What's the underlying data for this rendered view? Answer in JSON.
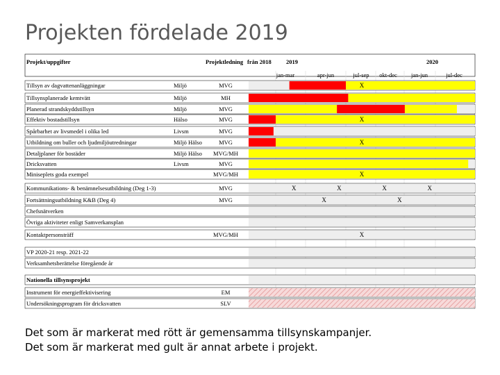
{
  "title": "Projekten fördelade 2019",
  "headers": {
    "task": "Projekt/uppgifter",
    "lead": "Projektledning",
    "from2018": "från 2018",
    "y2019": "2019",
    "y2020": "2020",
    "periods": [
      "jan-mar",
      "apr-jun",
      "jul-sep",
      "okt-dec",
      "jan-jun",
      "jul-dec"
    ]
  },
  "legend_red": "Det som är markerat med rött är gemensamma tillsynskampanjer.",
  "legend_yellow": "Det som är markerat med gult är annat arbete i projekt.",
  "colors": {
    "red": "#ff0000",
    "yellow": "#ffff00",
    "hatch": "#e8a4a4",
    "grid": "#d9d9d9"
  },
  "rows": [
    {
      "task": "Tillsyn av dagvattenanläggningar",
      "unit": "Miljö",
      "lead": "MVG",
      "marks": [
        "X"
      ],
      "bars": [
        [
          "red",
          18,
          43
        ],
        [
          "yellow",
          43,
          100
        ]
      ]
    },
    {
      "task": "Tillsynsplanerade kemtvätt",
      "unit": "Miljö",
      "lead": "MH",
      "marks": [],
      "bars": [
        [
          "red",
          0,
          44
        ],
        [
          "yellow",
          44,
          100
        ]
      ]
    },
    {
      "task": "Planerad strandskyddstillsyn",
      "unit": "Miljö",
      "lead": "MVG",
      "marks": [],
      "bars": [
        [
          "yellow",
          0,
          39
        ],
        [
          "red",
          39,
          69
        ],
        [
          "yellow",
          69,
          92
        ]
      ]
    },
    {
      "task": "Effektiv bostadstillsyn",
      "unit": "Hälso",
      "lead": "MVG",
      "marks": [
        "X"
      ],
      "bars": [
        [
          "red",
          0,
          12
        ],
        [
          "yellow",
          12,
          100
        ]
      ]
    },
    {
      "task": "Spårbarhet av livsmedel i olika led",
      "unit": "Livsm",
      "lead": "MVG",
      "marks": [],
      "bars": [
        [
          "red",
          0,
          11
        ]
      ]
    },
    {
      "task": "Utbildning om buller och ljudmiljöutredningar",
      "unit": "Miljö Hälso",
      "lead": "MVG",
      "marks": [
        "X"
      ],
      "bars": [
        [
          "red",
          0,
          12
        ],
        [
          "yellow",
          12,
          100
        ]
      ]
    },
    {
      "task": "Detaljplaner för bostäder",
      "unit": "Miljö Hälso",
      "lead": "MVG/MH",
      "marks": [],
      "bars": [
        [
          "yellow",
          0,
          100
        ]
      ]
    },
    {
      "task": "Dricksvatten",
      "unit": "Livsm",
      "lead": "MVG",
      "marks": [],
      "bars": [
        [
          "yellow",
          0,
          97
        ]
      ]
    },
    {
      "task": "Miniseplets goda exempel",
      "unit": "",
      "lead": "MVG/MH",
      "marks": [
        "X"
      ],
      "bars": [
        [
          "yellow",
          0,
          100
        ]
      ]
    },
    {
      "task": "Kommunikations- & benämnelsesutbildning (Deg 1-3)",
      "unit": "",
      "lead": "MVG",
      "marks": [
        "X",
        "X",
        "X",
        "X"
      ],
      "bars": []
    },
    {
      "task": "Fortsättningsutbildning K&B (Deg 4)",
      "unit": "",
      "lead": "MVG",
      "marks": [
        "X",
        "X"
      ],
      "bars": []
    },
    {
      "task": "Chefsnätverken",
      "unit": "",
      "lead": "",
      "marks": [],
      "bars": []
    },
    {
      "task": "Övriga aktiviteter enligt Samverkansplan",
      "unit": "",
      "lead": "",
      "marks": [],
      "bars": []
    },
    {
      "task": "Kontaktpersonsträff",
      "unit": "",
      "lead": "MVG/MH",
      "marks": [
        "X"
      ],
      "bars": []
    },
    {
      "task": "VP 2020-21 resp. 2021-22",
      "unit": "",
      "lead": "",
      "marks": [],
      "bars": []
    },
    {
      "task": "Verksamhetsberättelse föregående år",
      "unit": "",
      "lead": "",
      "marks": [],
      "bars": []
    },
    {
      "task": "Nationella tillsynsprojekt",
      "unit": "",
      "lead": "",
      "marks": [],
      "bars": []
    },
    {
      "task": "Instrument för energieffektivisering",
      "unit": "",
      "lead": "EM",
      "marks": [],
      "bars": [
        [
          "hatch",
          0,
          100
        ]
      ]
    },
    {
      "task": "Undersökningsprogram för dricksvatten",
      "unit": "",
      "lead": "SLV",
      "marks": [],
      "bars": [
        [
          "hatch",
          0,
          100
        ]
      ]
    }
  ]
}
